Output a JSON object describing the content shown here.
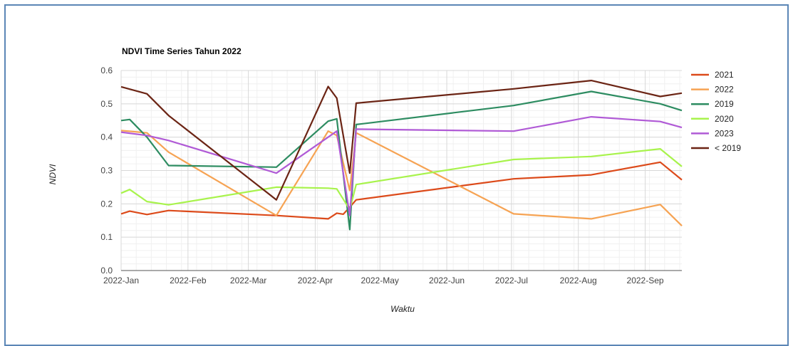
{
  "chart_data": {
    "type": "line",
    "title": "NDVI Time Series Tahun 2022",
    "xlabel": "Waktu",
    "ylabel": "NDVI",
    "ylim": [
      0,
      0.6
    ],
    "yticks": [
      "0.0",
      "0.1",
      "0.2",
      "0.3",
      "0.4",
      "0.5",
      "0.6"
    ],
    "xticks": [
      {
        "label": "2022-Jan",
        "date": "2022-01-01"
      },
      {
        "label": "2022-Feb",
        "date": "2022-02-01"
      },
      {
        "label": "2022-Mar",
        "date": "2022-03-01"
      },
      {
        "label": "2022-Apr",
        "date": "2022-04-01"
      },
      {
        "label": "2022-May",
        "date": "2022-05-01"
      },
      {
        "label": "2022-Jun",
        "date": "2022-06-01"
      },
      {
        "label": "2022-Jul",
        "date": "2022-07-01"
      },
      {
        "label": "2022-Aug",
        "date": "2022-08-01"
      },
      {
        "label": "2022-Sep",
        "date": "2022-09-01"
      }
    ],
    "xrange": [
      "2022-01-01",
      "2022-09-18"
    ],
    "grid": true,
    "legend_position": "right",
    "series": [
      {
        "name": "2021",
        "color": "#dc4a1a",
        "points": [
          [
            "2022-01-01",
            0.17
          ],
          [
            "2022-01-05",
            0.178
          ],
          [
            "2022-01-13",
            0.168
          ],
          [
            "2022-01-23",
            0.18
          ],
          [
            "2022-03-14",
            0.165
          ],
          [
            "2022-04-07",
            0.155
          ],
          [
            "2022-04-11",
            0.172
          ],
          [
            "2022-04-14",
            0.169
          ],
          [
            "2022-04-17",
            0.19
          ],
          [
            "2022-04-20",
            0.212
          ],
          [
            "2022-07-02",
            0.275
          ],
          [
            "2022-08-07",
            0.287
          ],
          [
            "2022-09-08",
            0.325
          ],
          [
            "2022-09-18",
            0.272
          ]
        ]
      },
      {
        "name": "2022",
        "color": "#f6a353",
        "points": [
          [
            "2022-01-01",
            0.42
          ],
          [
            "2022-01-13",
            0.413
          ],
          [
            "2022-01-23",
            0.355
          ],
          [
            "2022-03-14",
            0.165
          ],
          [
            "2022-04-07",
            0.418
          ],
          [
            "2022-04-11",
            0.405
          ],
          [
            "2022-04-17",
            0.24
          ],
          [
            "2022-04-20",
            0.413
          ],
          [
            "2022-07-02",
            0.17
          ],
          [
            "2022-08-07",
            0.155
          ],
          [
            "2022-09-08",
            0.198
          ],
          [
            "2022-09-18",
            0.134
          ]
        ]
      },
      {
        "name": "2019",
        "color": "#2d8c61",
        "points": [
          [
            "2022-01-01",
            0.45
          ],
          [
            "2022-01-05",
            0.453
          ],
          [
            "2022-01-13",
            0.4
          ],
          [
            "2022-01-23",
            0.315
          ],
          [
            "2022-03-14",
            0.31
          ],
          [
            "2022-04-07",
            0.448
          ],
          [
            "2022-04-11",
            0.455
          ],
          [
            "2022-04-17",
            0.123
          ],
          [
            "2022-04-20",
            0.438
          ],
          [
            "2022-07-02",
            0.495
          ],
          [
            "2022-08-07",
            0.537
          ],
          [
            "2022-09-08",
            0.5
          ],
          [
            "2022-09-18",
            0.48
          ]
        ]
      },
      {
        "name": "2020",
        "color": "#a8f34c",
        "points": [
          [
            "2022-01-01",
            0.232
          ],
          [
            "2022-01-05",
            0.243
          ],
          [
            "2022-01-13",
            0.207
          ],
          [
            "2022-01-23",
            0.197
          ],
          [
            "2022-03-14",
            0.25
          ],
          [
            "2022-04-07",
            0.247
          ],
          [
            "2022-04-11",
            0.245
          ],
          [
            "2022-04-17",
            0.183
          ],
          [
            "2022-04-20",
            0.258
          ],
          [
            "2022-07-02",
            0.333
          ],
          [
            "2022-08-07",
            0.342
          ],
          [
            "2022-09-08",
            0.365
          ],
          [
            "2022-09-18",
            0.312
          ]
        ]
      },
      {
        "name": "2023",
        "color": "#b05ad6",
        "points": [
          [
            "2022-01-01",
            0.415
          ],
          [
            "2022-01-13",
            0.405
          ],
          [
            "2022-01-23",
            0.39
          ],
          [
            "2022-03-14",
            0.292
          ],
          [
            "2022-04-11",
            0.418
          ],
          [
            "2022-04-17",
            0.165
          ],
          [
            "2022-04-20",
            0.424
          ],
          [
            "2022-07-02",
            0.418
          ],
          [
            "2022-08-07",
            0.461
          ],
          [
            "2022-09-08",
            0.447
          ],
          [
            "2022-09-18",
            0.429
          ]
        ]
      },
      {
        "name": "< 2019",
        "color": "#6b2414",
        "points": [
          [
            "2022-01-01",
            0.551
          ],
          [
            "2022-01-13",
            0.53
          ],
          [
            "2022-01-23",
            0.465
          ],
          [
            "2022-03-14",
            0.212
          ],
          [
            "2022-04-07",
            0.552
          ],
          [
            "2022-04-11",
            0.517
          ],
          [
            "2022-04-17",
            0.292
          ],
          [
            "2022-04-20",
            0.502
          ],
          [
            "2022-07-02",
            0.545
          ],
          [
            "2022-08-07",
            0.57
          ],
          [
            "2022-09-08",
            0.522
          ],
          [
            "2022-09-18",
            0.532
          ]
        ]
      }
    ]
  }
}
